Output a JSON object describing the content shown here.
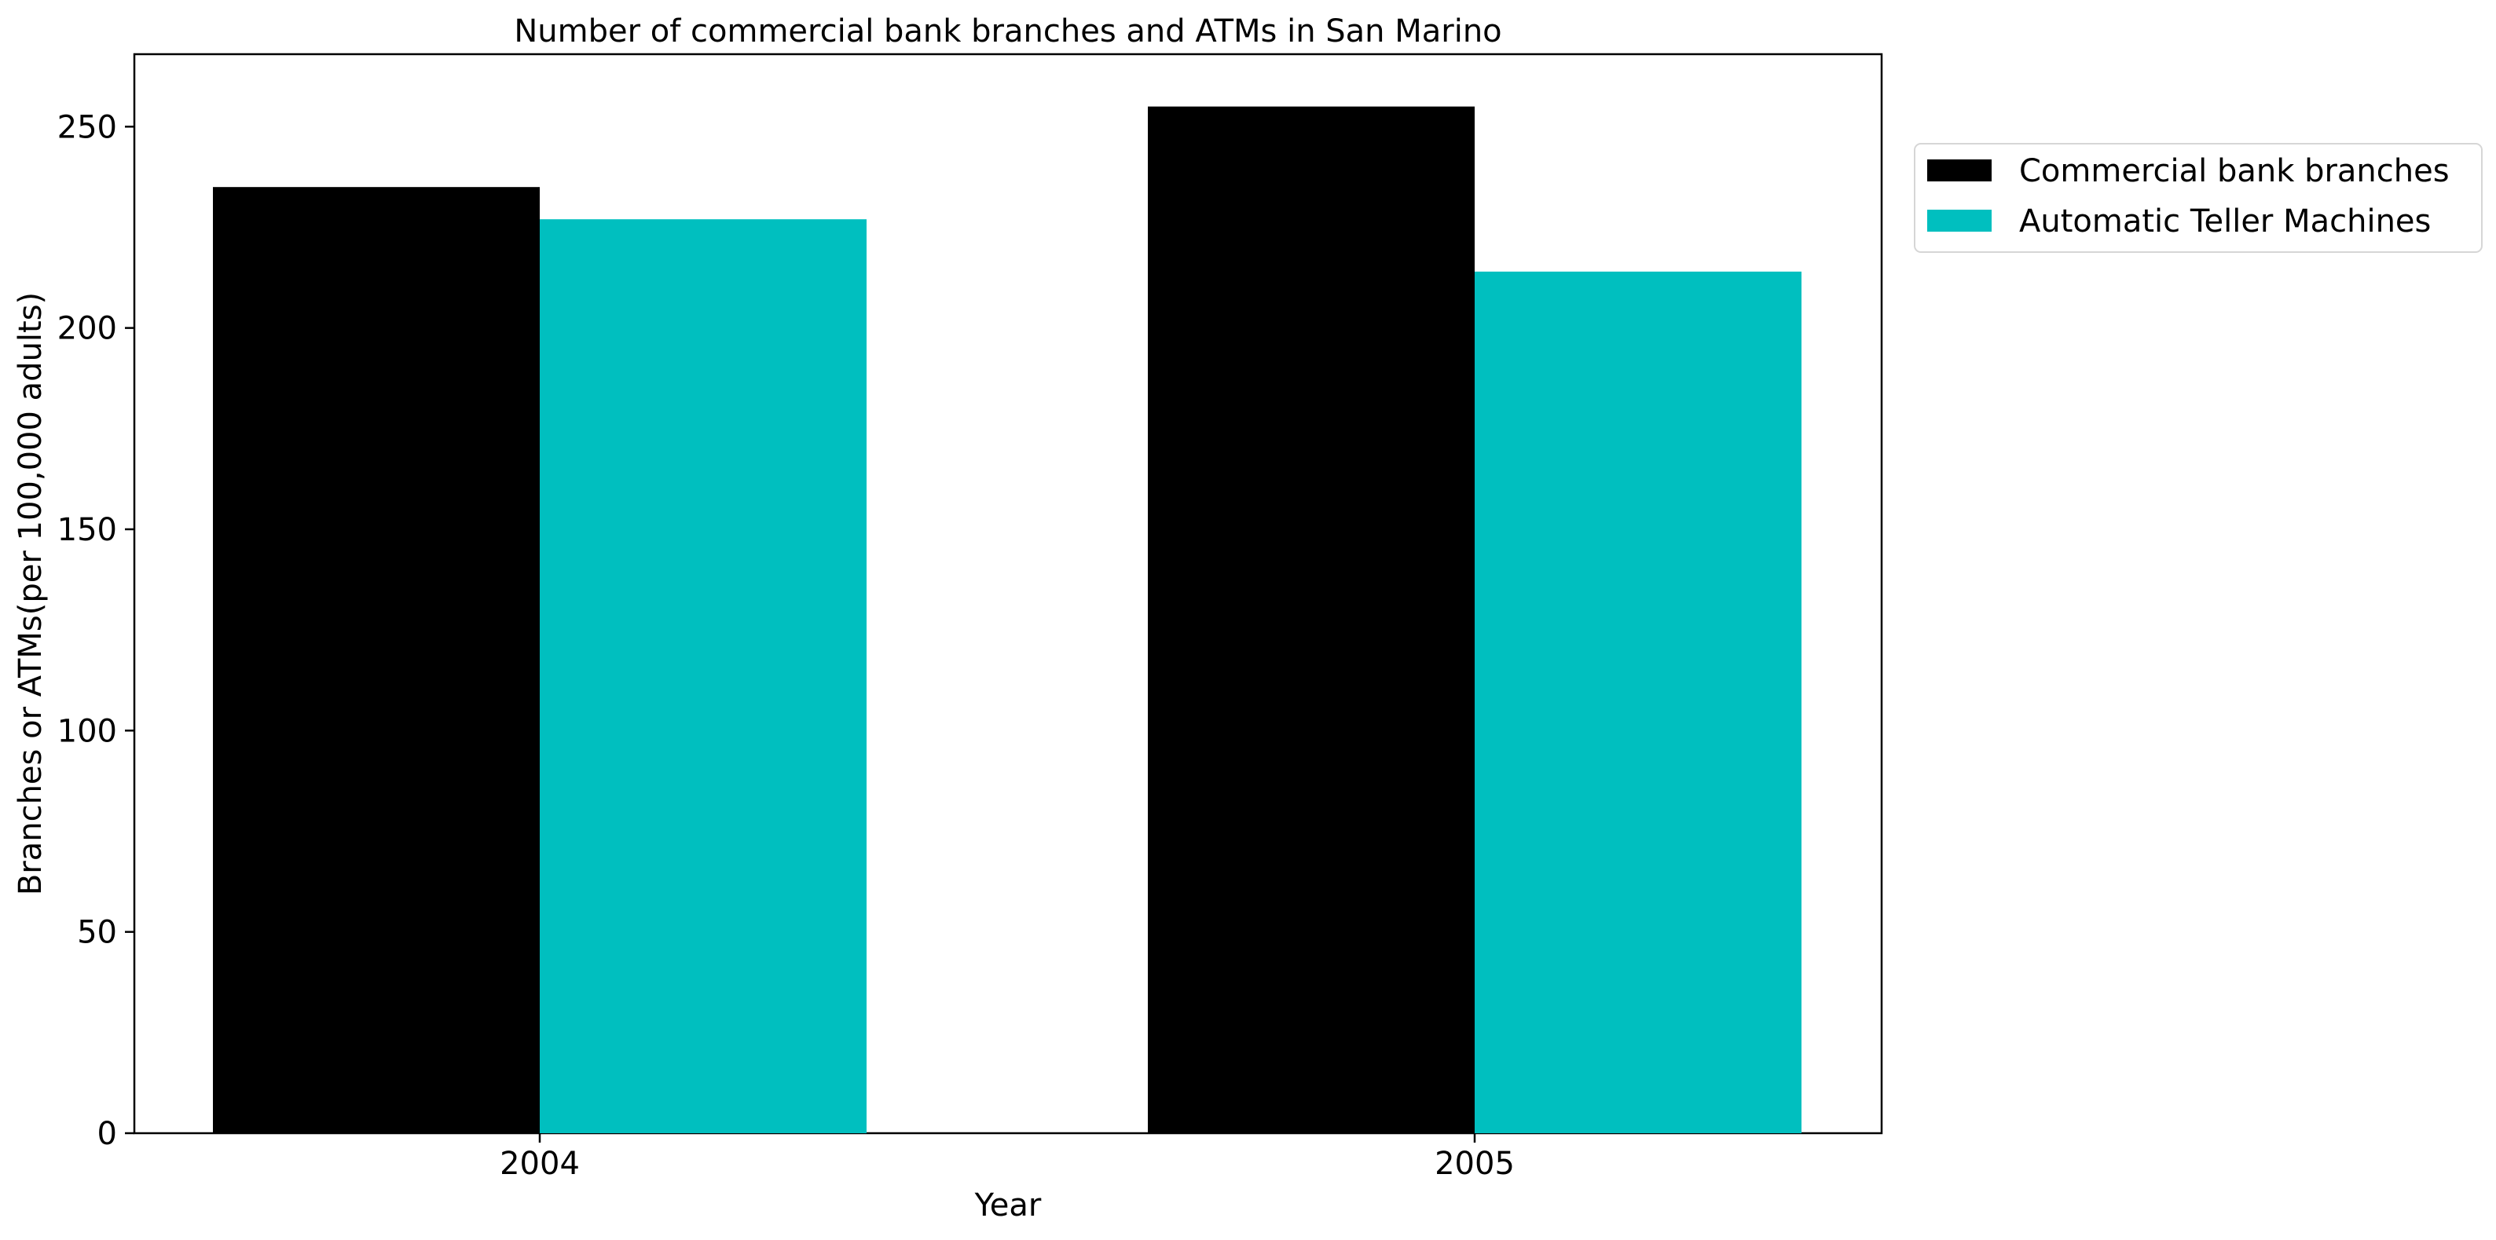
{
  "chart_data": {
    "type": "bar",
    "title": "Number of commercial bank branches and ATMs in San Marino",
    "xlabel": "Year",
    "ylabel": "Branches or ATMs(per 100,000 adults)",
    "categories": [
      "2004",
      "2005"
    ],
    "series": [
      {
        "name": "Commercial bank branches",
        "color": "#000000",
        "values": [
          235,
          255
        ]
      },
      {
        "name": "Automatic Teller Machines",
        "color": "#00bfbf",
        "values": [
          227,
          214
        ]
      }
    ],
    "ylim": [
      0,
      268
    ],
    "yticks": [
      0,
      50,
      100,
      150,
      200,
      250
    ],
    "grid": false,
    "legend_position": "outside-top-right"
  }
}
